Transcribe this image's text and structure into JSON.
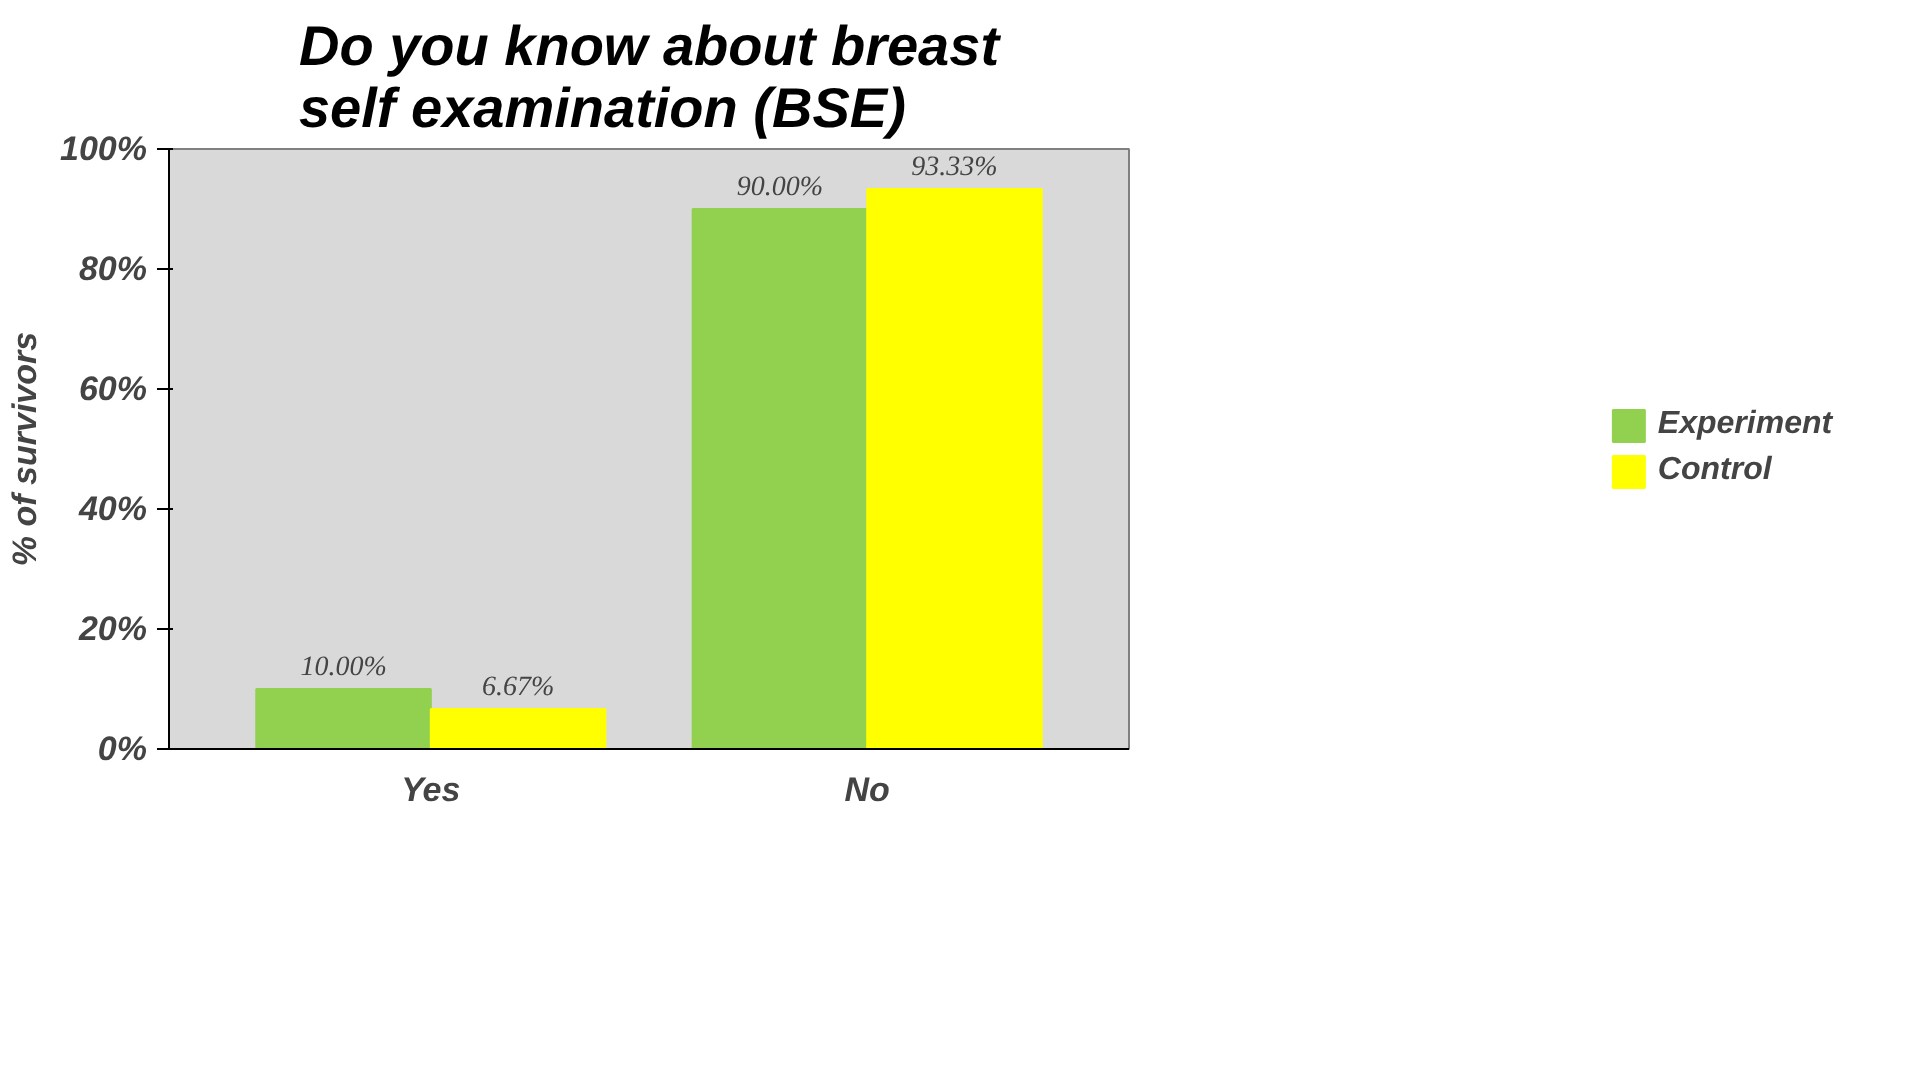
{
  "chart_data": {
    "type": "bar",
    "title": "Do you know about breast self examination (BSE)",
    "ylabel": "% of survivors",
    "categories": [
      "Yes",
      "No"
    ],
    "series": [
      {
        "name": "Experiment",
        "color": "#92d050",
        "values": [
          10,
          90
        ],
        "value_labels": [
          "10.00%",
          "90.00%"
        ]
      },
      {
        "name": "Control",
        "color": "#ffff00",
        "values": [
          6.67,
          93.33
        ],
        "value_labels": [
          "6.67%",
          "93.33%"
        ]
      }
    ],
    "ylim": [
      0,
      100
    ],
    "yticks": [
      {
        "value": 0,
        "label": "0%"
      },
      {
        "value": 20,
        "label": "20%"
      },
      {
        "value": 40,
        "label": "40%"
      },
      {
        "value": 60,
        "label": "60%"
      },
      {
        "value": 80,
        "label": "80%"
      },
      {
        "value": 100,
        "label": "100%"
      }
    ],
    "legend": "right"
  }
}
